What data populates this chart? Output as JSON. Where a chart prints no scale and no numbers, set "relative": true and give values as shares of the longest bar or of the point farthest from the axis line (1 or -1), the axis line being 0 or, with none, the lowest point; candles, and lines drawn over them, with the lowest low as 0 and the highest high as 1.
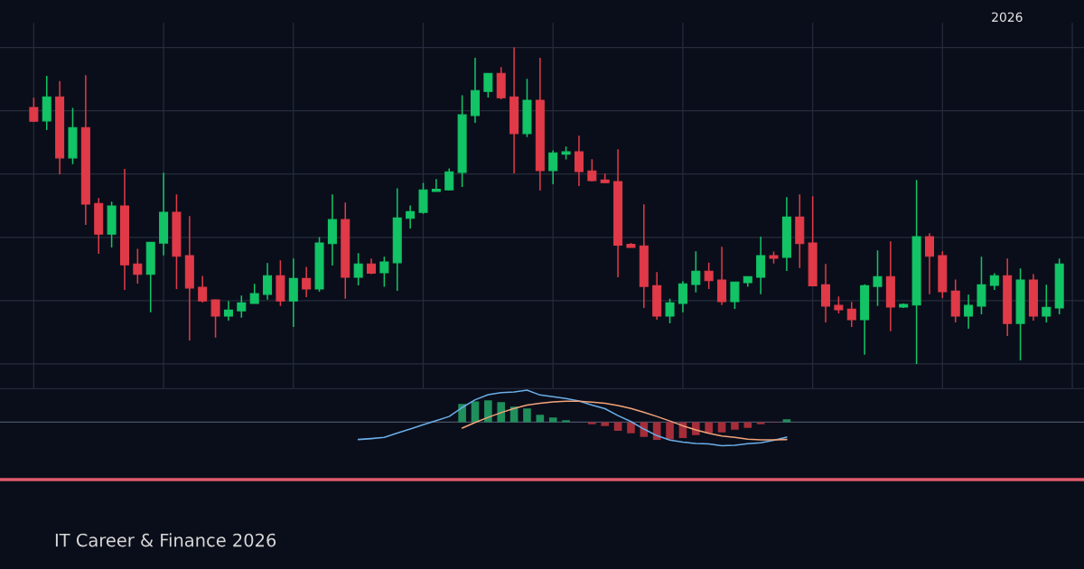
{
  "chart_data": [
    {
      "type": "candlestick",
      "relative": true,
      "grid": true,
      "title": "IT Career & Finance 2026",
      "annotations": [
        "2026"
      ],
      "colors": [
        "#e03a48",
        "#12c466",
        "#e03a48",
        "#12c466",
        "#e03a48",
        "#e03a48",
        "#12c466",
        "#e03a48",
        "#e03a48",
        "#12c466",
        "#12c466",
        "#e03a48",
        "#e03a48",
        "#e03a48",
        "#e03a48",
        "#12c466",
        "#12c466",
        "#12c466",
        "#12c466",
        "#e03a48",
        "#12c466",
        "#e03a48",
        "#12c466",
        "#12c466",
        "#e03a48",
        "#12c466",
        "#e03a48",
        "#12c466",
        "#12c466",
        "#12c466",
        "#12c466",
        "#12c466",
        "#12c466",
        "#12c466",
        "#12c466",
        "#12c466",
        "#e03a48",
        "#e03a48",
        "#12c466",
        "#e03a48",
        "#12c466",
        "#12c466",
        "#e03a48",
        "#e03a48",
        "#e03a48",
        "#e03a48",
        "#e03a48",
        "#e03a48",
        "#e03a48",
        "#12c466",
        "#12c466",
        "#12c466",
        "#e03a48",
        "#e03a48",
        "#12c466",
        "#12c466",
        "#12c466",
        "#e03a48",
        "#12c466",
        "#e03a48",
        "#e03a48",
        "#e03a48",
        "#e03a48",
        "#e03a48",
        "#12c466",
        "#12c466",
        "#e03a48",
        "#12c466",
        "#12c466",
        "#e03a48",
        "#e03a48",
        "#e03a48",
        "#12c466",
        "#12c466",
        "#12c466",
        "#e03a48",
        "#12c466",
        "#e03a48",
        "#12c466",
        "#12c466"
      ],
      "categories": [
        null,
        null,
        null,
        null,
        null,
        null,
        null,
        null,
        null,
        null,
        null,
        null,
        null,
        null,
        null,
        null,
        null,
        null,
        null,
        null,
        null,
        null,
        null,
        null,
        null,
        null,
        null,
        null,
        null,
        null,
        null,
        null,
        null,
        null,
        null,
        null,
        null,
        null,
        null,
        null,
        null,
        null,
        null,
        null,
        null,
        null,
        null,
        null,
        null,
        null,
        null,
        null,
        null,
        null,
        null,
        null,
        null,
        null,
        null,
        null,
        null,
        null,
        null,
        null,
        null,
        null,
        null,
        null,
        null,
        null,
        null,
        null,
        null,
        null,
        null,
        null,
        null,
        null,
        null,
        null
      ],
      "ohlc": [
        [
          0.81,
          0.841,
          0.765,
          0.767
        ],
        [
          0.768,
          0.91,
          0.739,
          0.844
        ],
        [
          0.844,
          0.894,
          0.599,
          0.651
        ],
        [
          0.651,
          0.809,
          0.631,
          0.747
        ],
        [
          0.747,
          0.912,
          0.439,
          0.505
        ],
        [
          0.507,
          0.524,
          0.348,
          0.41
        ],
        [
          0.41,
          0.513,
          0.368,
          0.499
        ],
        [
          0.499,
          0.616,
          0.234,
          0.313
        ],
        [
          0.316,
          0.364,
          0.254,
          0.283
        ],
        [
          0.283,
          0.384,
          0.163,
          0.384
        ],
        [
          0.382,
          0.604,
          0.343,
          0.479
        ],
        [
          0.479,
          0.536,
          0.237,
          0.34
        ],
        [
          0.342,
          0.467,
          0.074,
          0.24
        ],
        [
          0.242,
          0.278,
          0.194,
          0.199
        ],
        [
          0.202,
          0.204,
          0.083,
          0.151
        ],
        [
          0.151,
          0.199,
          0.137,
          0.17
        ],
        [
          0.168,
          0.216,
          0.146,
          0.193
        ],
        [
          0.191,
          0.253,
          0.191,
          0.222
        ],
        [
          0.22,
          0.319,
          0.203,
          0.279
        ],
        [
          0.279,
          0.327,
          0.183,
          0.199
        ],
        [
          0.199,
          0.333,
          0.117,
          0.27
        ],
        [
          0.27,
          0.307,
          0.211,
          0.237
        ],
        [
          0.237,
          0.401,
          0.228,
          0.382
        ],
        [
          0.38,
          0.536,
          0.311,
          0.456
        ],
        [
          0.456,
          0.51,
          0.206,
          0.274
        ],
        [
          0.274,
          0.35,
          0.248,
          0.316
        ],
        [
          0.316,
          0.333,
          0.284,
          0.287
        ],
        [
          0.288,
          0.339,
          0.244,
          0.322
        ],
        [
          0.32,
          0.555,
          0.231,
          0.461
        ],
        [
          0.46,
          0.501,
          0.428,
          0.481
        ],
        [
          0.479,
          0.572,
          0.474,
          0.55
        ],
        [
          0.545,
          0.584,
          0.545,
          0.552
        ],
        [
          0.55,
          0.618,
          0.548,
          0.607
        ],
        [
          0.605,
          0.849,
          0.559,
          0.787
        ],
        [
          0.785,
          0.967,
          0.762,
          0.864
        ],
        [
          0.861,
          0.918,
          0.842,
          0.918
        ],
        [
          0.918,
          0.938,
          0.836,
          0.841
        ],
        [
          0.844,
          1.0,
          0.602,
          0.728
        ],
        [
          0.728,
          0.901,
          0.717,
          0.833
        ],
        [
          0.833,
          0.967,
          0.548,
          0.611
        ],
        [
          0.611,
          0.675,
          0.568,
          0.667
        ],
        [
          0.663,
          0.687,
          0.646,
          0.67
        ],
        [
          0.67,
          0.721,
          0.562,
          0.608
        ],
        [
          0.61,
          0.647,
          0.577,
          0.579
        ],
        [
          0.581,
          0.601,
          0.573,
          0.573
        ],
        [
          0.576,
          0.678,
          0.274,
          0.375
        ],
        [
          0.378,
          0.382,
          0.368,
          0.368
        ],
        [
          0.373,
          0.504,
          0.177,
          0.245
        ],
        [
          0.247,
          0.29,
          0.14,
          0.151
        ],
        [
          0.151,
          0.206,
          0.128,
          0.193
        ],
        [
          0.191,
          0.262,
          0.163,
          0.253
        ],
        [
          0.251,
          0.356,
          0.226,
          0.293
        ],
        [
          0.293,
          0.32,
          0.237,
          0.263
        ],
        [
          0.265,
          0.37,
          0.186,
          0.197
        ],
        [
          0.197,
          0.259,
          0.174,
          0.259
        ],
        [
          0.257,
          0.276,
          0.244,
          0.276
        ],
        [
          0.274,
          0.402,
          0.22,
          0.342
        ],
        [
          0.342,
          0.355,
          0.317,
          0.334
        ],
        [
          0.337,
          0.527,
          0.294,
          0.464
        ],
        [
          0.464,
          0.536,
          0.303,
          0.38
        ],
        [
          0.382,
          0.53,
          0.245,
          0.247
        ],
        [
          0.25,
          0.316,
          0.131,
          0.183
        ],
        [
          0.185,
          0.213,
          0.16,
          0.171
        ],
        [
          0.173,
          0.196,
          0.117,
          0.14
        ],
        [
          0.14,
          0.252,
          0.029,
          0.247
        ],
        [
          0.245,
          0.359,
          0.183,
          0.276
        ],
        [
          0.276,
          0.387,
          0.103,
          0.18
        ],
        [
          0.18,
          0.191,
          0.177,
          0.188
        ],
        [
          0.186,
          0.581,
          0.0,
          0.402
        ],
        [
          0.402,
          0.413,
          0.22,
          0.34
        ],
        [
          0.342,
          0.356,
          0.208,
          0.228
        ],
        [
          0.23,
          0.267,
          0.131,
          0.151
        ],
        [
          0.151,
          0.219,
          0.111,
          0.185
        ],
        [
          0.183,
          0.339,
          0.157,
          0.25
        ],
        [
          0.248,
          0.287,
          0.234,
          0.279
        ],
        [
          0.279,
          0.333,
          0.088,
          0.128
        ],
        [
          0.128,
          0.302,
          0.011,
          0.265
        ],
        [
          0.265,
          0.284,
          0.137,
          0.151
        ],
        [
          0.151,
          0.25,
          0.131,
          0.179
        ],
        [
          0.177,
          0.333,
          0.157,
          0.316
        ]
      ]
    },
    {
      "type": "bar",
      "relative": true,
      "categories": [
        null,
        null,
        null,
        null,
        null,
        null,
        null,
        null,
        null,
        null,
        null,
        null,
        null,
        null,
        null,
        null,
        null,
        null,
        null,
        null,
        null,
        null,
        null,
        null,
        null,
        null,
        null,
        null,
        null,
        null,
        null,
        null,
        null,
        null,
        null,
        null,
        null,
        null,
        null,
        null,
        null,
        null,
        null,
        null,
        null,
        null,
        null,
        null,
        null,
        null,
        null,
        null,
        null,
        null,
        null,
        null,
        null,
        null,
        null,
        null,
        null,
        null,
        null,
        null,
        null,
        null,
        null,
        null,
        null,
        null,
        null,
        null,
        null,
        null,
        null,
        null,
        null,
        null,
        null,
        null
      ],
      "series": [
        {
          "color": "#1f8f5c",
          "values": [
            null,
            null,
            null,
            null,
            null,
            null,
            null,
            null,
            null,
            null,
            null,
            null,
            null,
            null,
            null,
            null,
            null,
            null,
            null,
            null,
            null,
            null,
            null,
            null,
            null,
            null,
            null,
            null,
            null,
            null,
            null,
            null,
            null,
            0.57,
            0.645,
            0.682,
            0.626,
            0.486,
            0.43,
            0.234,
            0.15,
            0.065,
            null,
            null,
            null,
            null,
            null,
            null,
            null,
            null,
            null,
            null,
            null,
            null,
            null,
            null,
            null,
            null,
            0.093,
            null,
            null,
            null,
            null,
            null,
            null,
            null,
            null,
            null,
            null,
            null,
            null,
            null,
            null,
            null,
            null,
            null,
            null,
            null,
            null,
            null
          ]
        },
        {
          "color": "#a52d3a",
          "values": [
            null,
            null,
            null,
            null,
            null,
            null,
            null,
            null,
            null,
            null,
            null,
            null,
            null,
            null,
            null,
            null,
            null,
            null,
            null,
            null,
            null,
            null,
            null,
            null,
            null,
            null,
            null,
            null,
            null,
            null,
            null,
            null,
            null,
            null,
            null,
            null,
            null,
            null,
            null,
            null,
            null,
            null,
            null,
            -0.065,
            -0.121,
            -0.271,
            -0.346,
            -0.458,
            -0.551,
            -0.542,
            -0.495,
            -0.402,
            -0.336,
            -0.318,
            -0.234,
            -0.178,
            -0.065,
            -0.019,
            null,
            null,
            null,
            null,
            null,
            null,
            null,
            null,
            null,
            null,
            null,
            null,
            null,
            null,
            null,
            null,
            null,
            null,
            null,
            null,
            null,
            null
          ]
        },
        {
          "type": "line",
          "color": "#6aaee8",
          "values": [
            null,
            null,
            null,
            null,
            null,
            null,
            null,
            null,
            null,
            null,
            null,
            null,
            null,
            null,
            null,
            null,
            null,
            null,
            null,
            null,
            null,
            null,
            null,
            null,
            null,
            -0.542,
            -0.514,
            -0.477,
            -0.343,
            -0.212,
            -0.08,
            0.05,
            0.178,
            0.458,
            0.701,
            0.86,
            0.925,
            0.944,
            1.0,
            0.85,
            0.794,
            0.738,
            0.664,
            0.533,
            0.421,
            0.206,
            0.019,
            -0.215,
            -0.421,
            -0.561,
            -0.626,
            -0.664,
            -0.682,
            -0.738,
            -0.72,
            -0.673,
            -0.645,
            -0.57,
            -0.467,
            null,
            null,
            null,
            null,
            null,
            null,
            null,
            null,
            null,
            null,
            null,
            null,
            null,
            null,
            null,
            null,
            null,
            null,
            null,
            null,
            null
          ]
        },
        {
          "type": "line",
          "color": "#f3a37a",
          "values": [
            null,
            null,
            null,
            null,
            null,
            null,
            null,
            null,
            null,
            null,
            null,
            null,
            null,
            null,
            null,
            null,
            null,
            null,
            null,
            null,
            null,
            null,
            null,
            null,
            null,
            null,
            null,
            null,
            null,
            null,
            null,
            null,
            null,
            -0.187,
            -0.009,
            0.15,
            0.299,
            0.43,
            0.533,
            0.589,
            0.636,
            0.654,
            0.654,
            0.626,
            0.589,
            0.523,
            0.43,
            0.308,
            0.178,
            0.037,
            -0.112,
            -0.243,
            -0.346,
            -0.43,
            -0.477,
            -0.533,
            -0.551,
            -0.551,
            -0.542,
            null,
            null,
            null,
            null,
            null,
            null,
            null,
            null,
            null,
            null,
            null,
            null,
            null,
            null,
            null,
            null,
            null,
            null,
            null,
            null,
            null
          ]
        }
      ]
    }
  ]
}
